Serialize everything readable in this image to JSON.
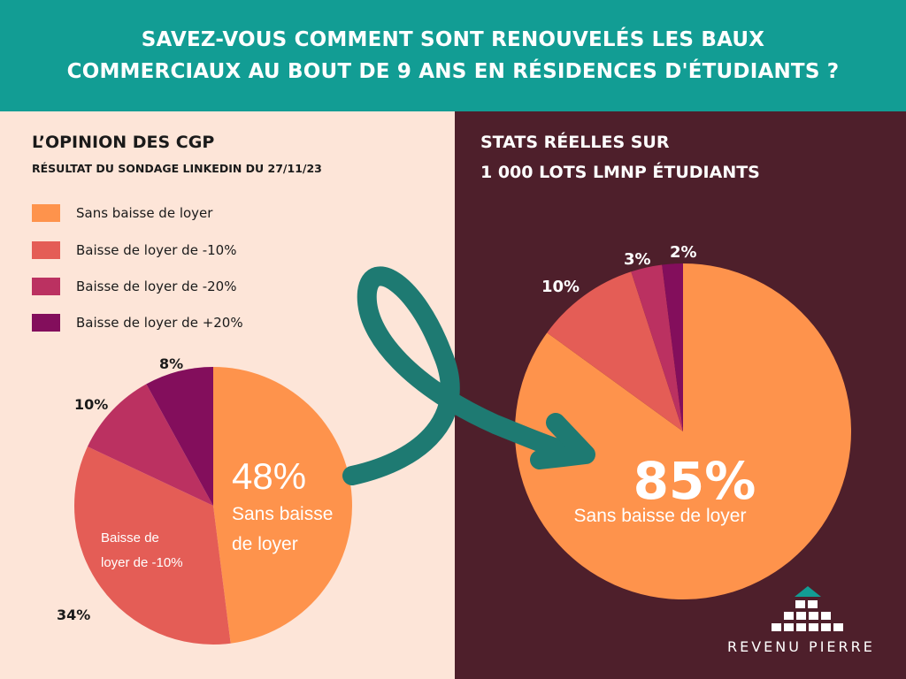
{
  "header": {
    "line1": "SAVEZ-VOUS COMMENT SONT RENOUVELÉS LES BAUX",
    "line2": "COMMERCIAUX AU BOUT DE 9 ANS EN RÉSIDENCES D'ÉTUDIANTS ?"
  },
  "left": {
    "title": "L’OPINION DES CGP",
    "subtitle": "RÉSULTAT DU SONDAGE LINKEDIN DU 27/11/23"
  },
  "right": {
    "title_line1": "STATS RÉELLES SUR",
    "title_line2": "1 000 LOTS LMNP ÉTUDIANTS"
  },
  "legend": [
    {
      "label": "Sans baisse de loyer",
      "color": "#fe934c"
    },
    {
      "label": "Baisse de loyer de -10%",
      "color": "#e45d56"
    },
    {
      "label": "Baisse de loyer de -20%",
      "color": "#bb3161"
    },
    {
      "label": "Baisse de loyer de +20%",
      "color": "#830e5c"
    }
  ],
  "chart_data": [
    {
      "type": "pie",
      "title": "L’OPINION DES CGP",
      "categories": [
        "Sans baisse de loyer",
        "Baisse de loyer de -10%",
        "Baisse de loyer de -20%",
        "Baisse de loyer de +20%"
      ],
      "values": [
        48,
        34,
        10,
        8
      ],
      "colors": [
        "#fe934c",
        "#e45d56",
        "#bb3161",
        "#830e5c"
      ],
      "labels": [
        "48%",
        "34%",
        "10%",
        "8%"
      ],
      "inner_labels": {
        "big_pct": "48%",
        "big_text_line1": "Sans baisse",
        "big_text_line2": "de loyer",
        "second_text_line1": "Baisse de",
        "second_text_line2": "loyer de -10%"
      }
    },
    {
      "type": "pie",
      "title": "STATS RÉELLES SUR 1 000 LOTS LMNP ÉTUDIANTS",
      "categories": [
        "Sans baisse de loyer",
        "Baisse de loyer de -10%",
        "Baisse de loyer de -20%",
        "Baisse de loyer de +20%"
      ],
      "values": [
        85,
        10,
        3,
        2
      ],
      "colors": [
        "#fe934c",
        "#e45d56",
        "#bb3161",
        "#830e5c"
      ],
      "labels": [
        "85%",
        "10%",
        "3%",
        "2%"
      ],
      "inner_labels": {
        "big_pct": "85%",
        "big_text": "Sans baisse de loyer"
      }
    }
  ],
  "logo": {
    "text": "REVENU PIERRE",
    "roof_color": "#129d94"
  }
}
